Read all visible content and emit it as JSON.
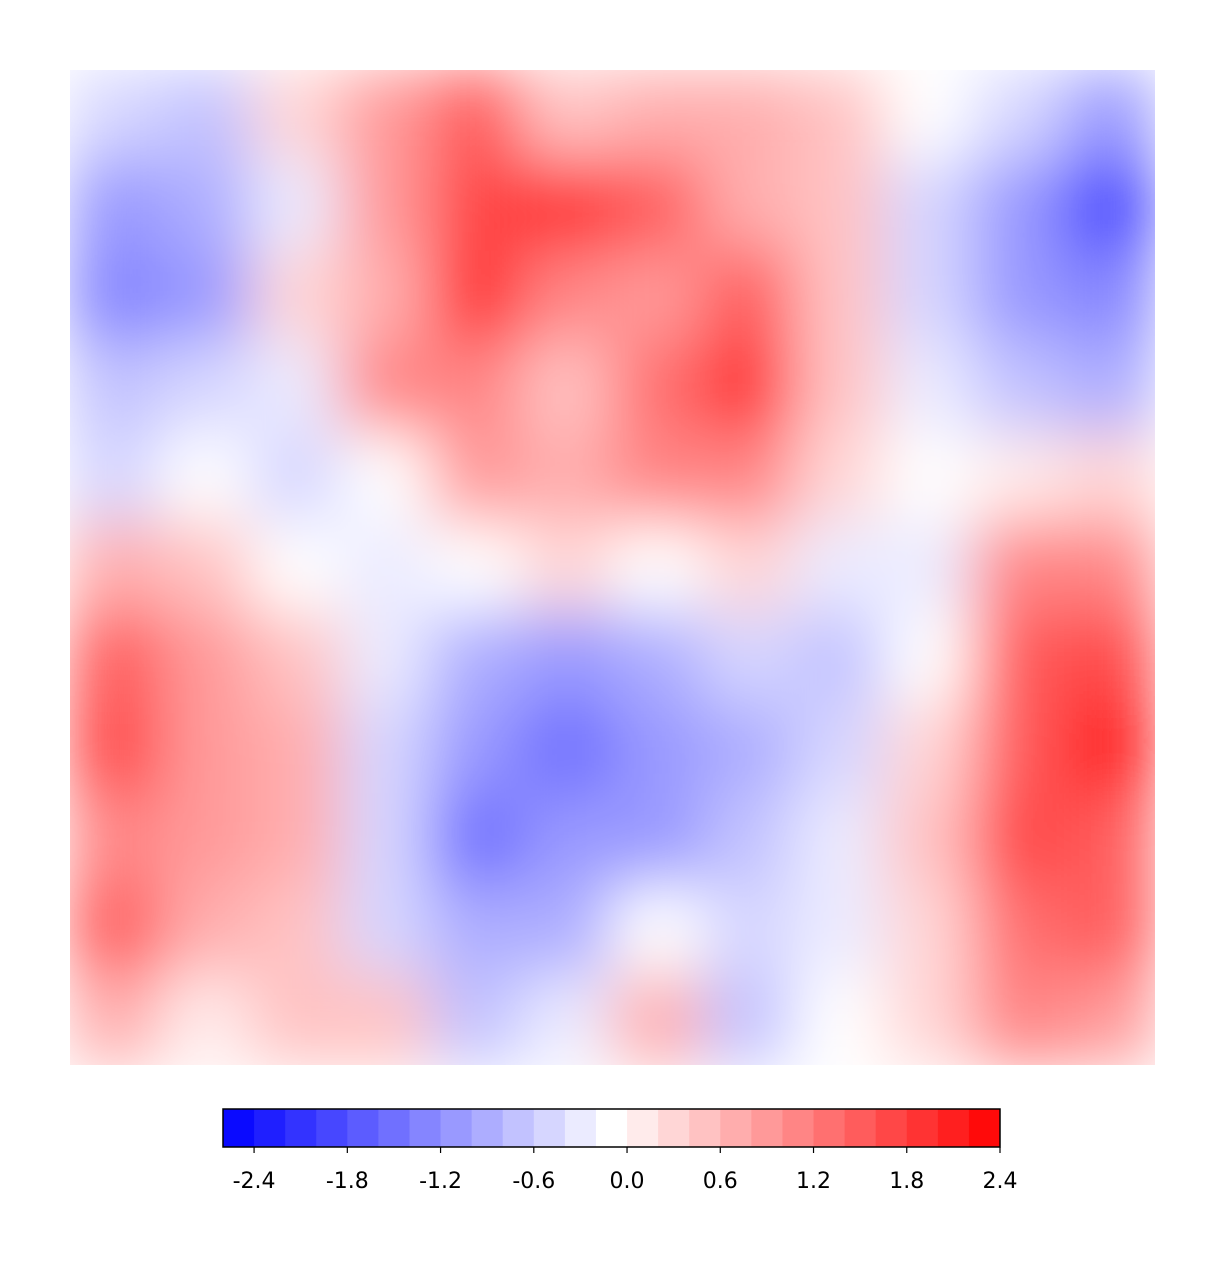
{
  "chart_data": {
    "type": "contourf",
    "colormap": "bwr",
    "levels": [
      -2.6,
      -2.4,
      -2.2,
      -2.0,
      -1.8,
      -1.6,
      -1.4,
      -1.2,
      -1.0,
      -0.8,
      -0.6,
      -0.4,
      -0.2,
      0.0,
      0.2,
      0.4,
      0.6,
      0.8,
      1.0,
      1.2,
      1.4,
      1.6,
      1.8,
      2.0,
      2.2,
      2.4
    ],
    "colorbar_ticks": [
      -2.4,
      -1.8,
      -1.2,
      -0.6,
      {
        "value": 0,
        "label": "0.0"
      },
      0.6,
      1.2,
      1.8,
      2.4
    ],
    "z": [
      [
        -0.6,
        -0.8,
        0.2,
        0.8,
        1.4,
        0.4,
        0.6,
        0.6,
        0.4,
        -0.2,
        -0.6,
        -1.2
      ],
      [
        -1.2,
        -1.0,
        -0.4,
        0.8,
        1.6,
        1.8,
        1.4,
        0.6,
        0.4,
        -0.6,
        -1.2,
        -2.0
      ],
      [
        -1.4,
        -1.2,
        0.2,
        0.6,
        1.8,
        1.0,
        0.8,
        1.4,
        0.4,
        -0.6,
        -1.2,
        -1.4
      ],
      [
        -0.8,
        -0.6,
        -0.4,
        1.0,
        1.0,
        0.4,
        1.2,
        1.8,
        0.4,
        -0.4,
        -0.8,
        -1.0
      ],
      [
        -0.6,
        -0.2,
        -0.6,
        -0.2,
        0.8,
        0.6,
        1.0,
        1.0,
        0.2,
        -0.2,
        0.0,
        0.2
      ],
      [
        0.6,
        0.4,
        -0.2,
        -0.4,
        -0.2,
        0.2,
        -0.2,
        0.2,
        -0.4,
        -0.4,
        1.0,
        1.0
      ],
      [
        1.4,
        0.8,
        0.4,
        -0.4,
        -1.0,
        -1.2,
        -1.0,
        -0.6,
        -0.8,
        -0.2,
        1.4,
        1.6
      ],
      [
        1.6,
        0.8,
        0.6,
        -0.6,
        -1.2,
        -1.6,
        -1.2,
        -1.0,
        -0.6,
        0.2,
        1.4,
        2.0
      ],
      [
        1.0,
        0.8,
        0.6,
        -0.6,
        -1.6,
        -1.2,
        -1.2,
        -0.8,
        -0.4,
        0.4,
        1.6,
        1.4
      ],
      [
        1.4,
        0.6,
        0.4,
        -0.6,
        -1.0,
        -1.0,
        -0.2,
        -0.6,
        -0.4,
        0.2,
        1.2,
        1.4
      ],
      [
        0.6,
        0.0,
        0.4,
        0.4,
        -0.8,
        -0.4,
        0.6,
        -0.8,
        -0.2,
        0.2,
        1.0,
        0.8
      ]
    ]
  }
}
